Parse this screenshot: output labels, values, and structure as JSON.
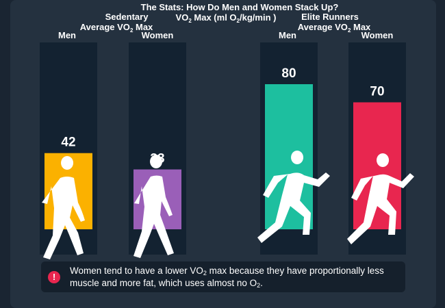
{
  "chart_data": {
    "type": "bar",
    "title": "The Stats: How Do Men and Women Stack Up?",
    "subtitle_pre": "VO",
    "subtitle_sub": "2",
    "subtitle_mid": " Max (ml O",
    "subtitle_sub2": "2",
    "subtitle_post": "/kg/min )",
    "ylim": [
      0,
      100
    ],
    "groups": [
      {
        "name_line1": "Sedentary",
        "name_line2_pre": "Average VO",
        "name_line2_sub": "2",
        "name_line2_post": " Max",
        "categories": [
          "Men",
          "Women"
        ],
        "values": [
          42,
          33
        ],
        "colors": [
          "#fbb100",
          "#9a5fb8"
        ],
        "figures": [
          "walking-man",
          "walking-woman"
        ]
      },
      {
        "name_line1": "Elite Runners",
        "name_line2_pre": "Average VO",
        "name_line2_sub": "2",
        "name_line2_post": " Max",
        "categories": [
          "Men",
          "Women"
        ],
        "values": [
          80,
          70
        ],
        "colors": [
          "#1dbf9f",
          "#e8264f"
        ],
        "figures": [
          "running-man",
          "running-woman"
        ]
      }
    ]
  },
  "note": {
    "icon": "exclamation-icon",
    "icon_glyph": "!",
    "line1_pre": "Women tend to have a lower VO",
    "line1_sub": "2",
    "line1_post": " max because they have proportionally less",
    "line2_pre": "muscle and more fat, which uses almost no O",
    "line2_sub": "2",
    "line2_post": "."
  },
  "colors": {
    "background": "#24313f",
    "track": "#132231",
    "text": "#ffffff"
  }
}
